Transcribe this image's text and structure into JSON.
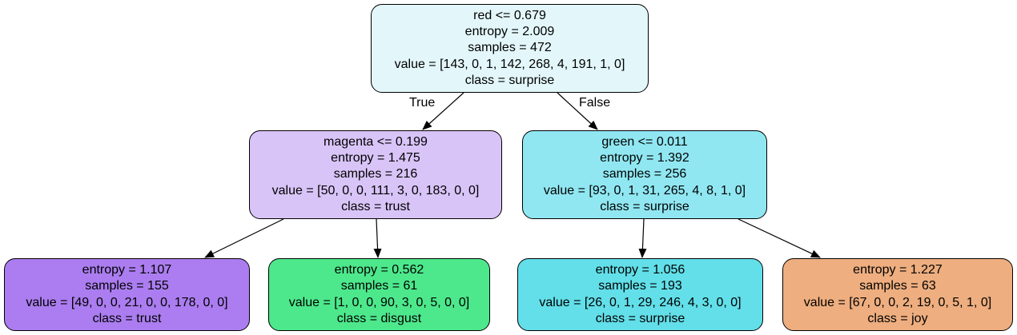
{
  "nodes": {
    "root": {
      "lines": [
        "red <= 0.679",
        "entropy = 2.009",
        "samples = 472",
        "value = [143, 0, 1, 142, 268, 4, 191, 1, 0]",
        "class = surprise"
      ],
      "fill": "#e3f7fb"
    },
    "left": {
      "lines": [
        "magenta <= 0.199",
        "entropy = 1.475",
        "samples = 216",
        "value = [50, 0, 0, 111, 3, 0, 183, 0, 0]",
        "class = trust"
      ],
      "fill": "#d9c4f8"
    },
    "right": {
      "lines": [
        "green <= 0.011",
        "entropy = 1.392",
        "samples = 256",
        "value = [93, 0, 1, 31, 265, 4, 8, 1, 0]",
        "class = surprise"
      ],
      "fill": "#90e7f2"
    },
    "left_left": {
      "lines": [
        "entropy = 1.107",
        "samples = 155",
        "value = [49, 0, 0, 21, 0, 0, 178, 0, 0]",
        "class = trust"
      ],
      "fill": "#ab7df0"
    },
    "left_right": {
      "lines": [
        "entropy = 0.562",
        "samples = 61",
        "value = [1, 0, 0, 90, 3, 0, 5, 0, 0]",
        "class = disgust"
      ],
      "fill": "#4de88c"
    },
    "right_left": {
      "lines": [
        "entropy = 1.056",
        "samples = 193",
        "value = [26, 0, 1, 29, 246, 4, 3, 0, 0]",
        "class = surprise"
      ],
      "fill": "#62dfe9"
    },
    "right_right": {
      "lines": [
        "entropy = 1.227",
        "samples = 63",
        "value = [67, 0, 0, 2, 19, 0, 5, 1, 0]",
        "class = joy"
      ],
      "fill": "#eeae7f"
    }
  },
  "edge_labels": {
    "true_label": "True",
    "false_label": "False"
  }
}
